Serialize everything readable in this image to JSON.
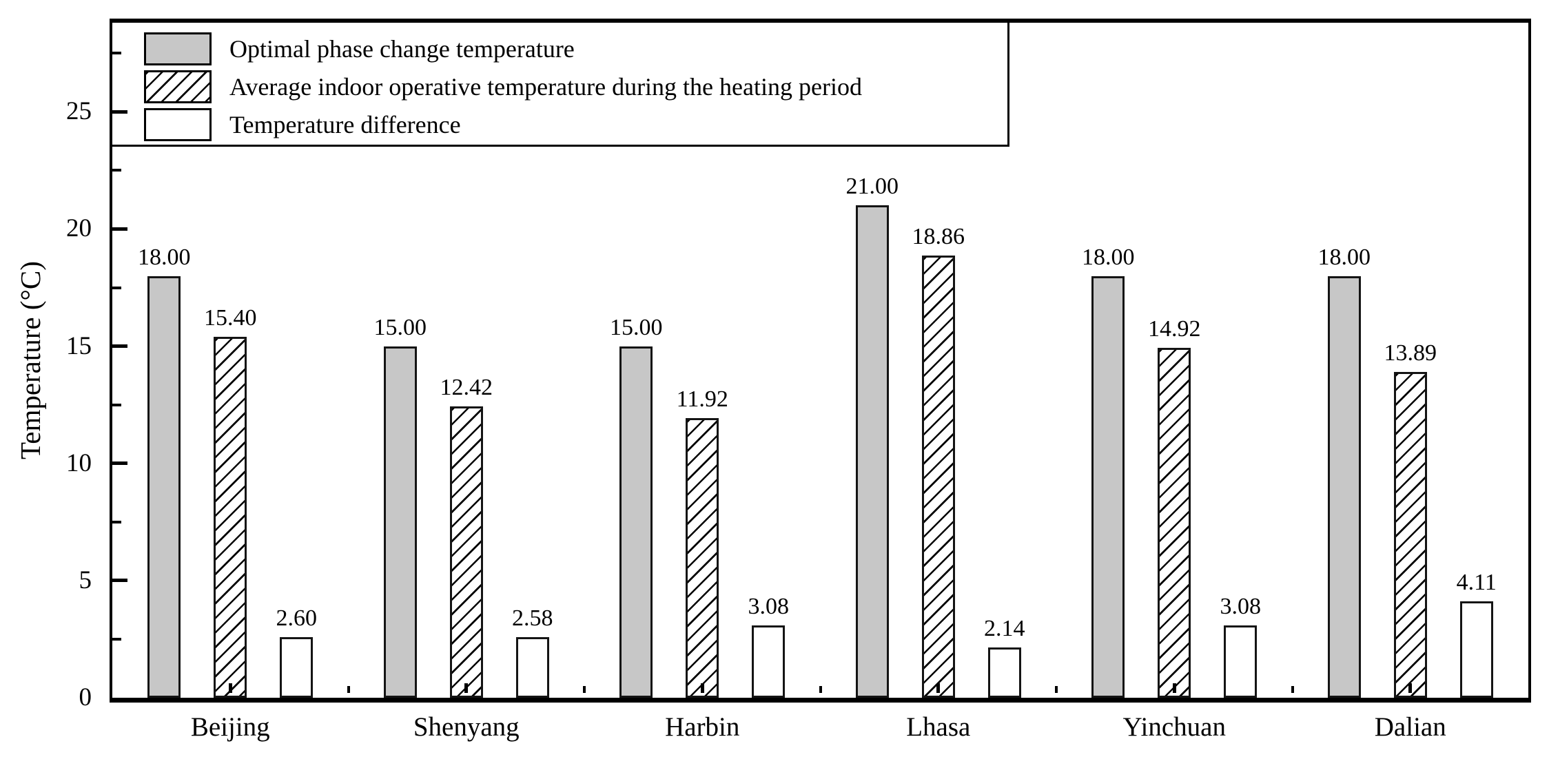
{
  "chart_data": {
    "type": "bar",
    "title": "",
    "xlabel": "",
    "ylabel": "Temperature (°C)",
    "categories": [
      "Beijing",
      "Shenyang",
      "Harbin",
      "Lhasa",
      "Yinchuan",
      "Dalian"
    ],
    "series": [
      {
        "name": "Optimal phase change temperature",
        "style": "solid-gray",
        "values": [
          18.0,
          15.0,
          15.0,
          21.0,
          18.0,
          18.0
        ],
        "labels": [
          "18.00",
          "15.00",
          "15.00",
          "21.00",
          "18.00",
          "18.00"
        ]
      },
      {
        "name": "Average indoor operative temperature during the heating period",
        "style": "diagonal-hatch",
        "values": [
          15.4,
          12.42,
          11.92,
          18.86,
          14.92,
          13.89
        ],
        "labels": [
          "15.40",
          "12.42",
          "11.92",
          "18.86",
          "14.92",
          "13.89"
        ]
      },
      {
        "name": "Temperature difference",
        "style": "white",
        "values": [
          2.6,
          2.58,
          3.08,
          2.14,
          3.08,
          4.11
        ],
        "labels": [
          "2.60",
          "2.58",
          "3.08",
          "2.14",
          "3.08",
          "4.11"
        ]
      }
    ],
    "y_ticks": [
      0,
      5,
      10,
      15,
      20,
      25
    ],
    "y_minor_step": 2.5,
    "ylim": [
      0,
      28.8
    ],
    "grid": false,
    "legend_position": "top-left",
    "colors": {
      "bar_gray": "#c7c7c7",
      "bar_white": "#ffffff",
      "hatch_line": "#000000",
      "frame": "#000000",
      "text": "#000000"
    }
  }
}
